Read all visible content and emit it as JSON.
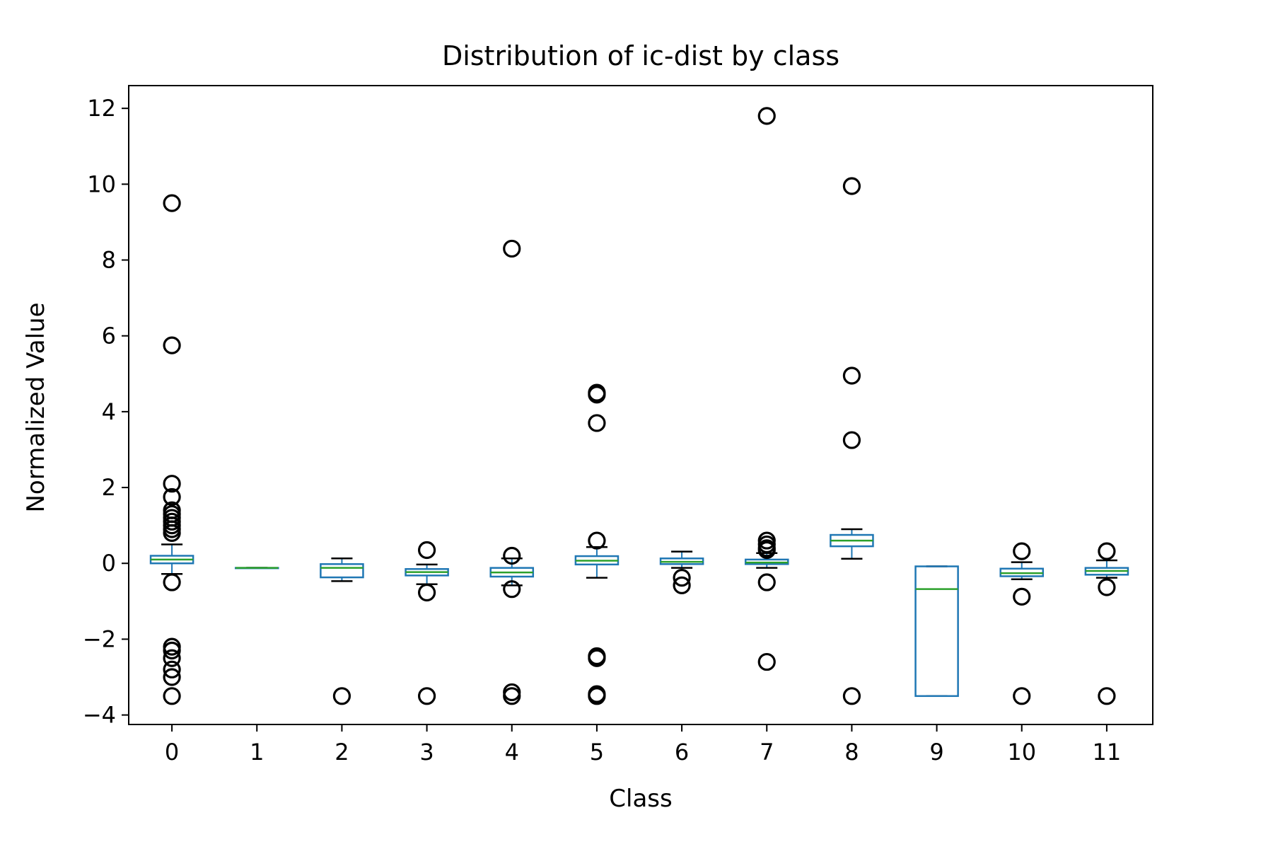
{
  "chart_data": {
    "type": "box",
    "title": "Distribution of ic-dist by class",
    "xlabel": "Class",
    "ylabel": "Normalized Value",
    "categories": [
      "0",
      "1",
      "2",
      "3",
      "4",
      "5",
      "6",
      "7",
      "8",
      "9",
      "10",
      "11"
    ],
    "ylim": [
      -4.25,
      12.6
    ],
    "yticks": [
      -4,
      -2,
      0,
      2,
      4,
      6,
      8,
      10,
      12
    ],
    "ytick_labels": [
      "−4",
      "−2",
      "0",
      "2",
      "4",
      "6",
      "8",
      "10",
      "12"
    ],
    "grid": false,
    "legend": "none",
    "colors": {
      "box": "#1f77b4",
      "median": "#2ca02c",
      "whisker_cap": "#000000",
      "flier": "#000000"
    },
    "boxes": [
      {
        "category": "0",
        "whislo": -0.28,
        "q1": 0.0,
        "med": 0.1,
        "q3": 0.2,
        "whishi": 0.5,
        "fliers": [
          9.5,
          5.75,
          2.1,
          1.75,
          1.4,
          1.3,
          1.2,
          1.1,
          1.0,
          0.9,
          0.8,
          -0.5,
          -2.2,
          -2.3,
          -2.5,
          -2.8,
          -3.0,
          -3.5
        ]
      },
      {
        "category": "1",
        "whislo": -0.12,
        "q1": -0.12,
        "med": -0.12,
        "q3": -0.12,
        "whishi": -0.12,
        "fliers": []
      },
      {
        "category": "2",
        "whislo": -0.47,
        "q1": -0.37,
        "med": -0.12,
        "q3": -0.02,
        "whishi": 0.13,
        "fliers": [
          -3.5
        ]
      },
      {
        "category": "3",
        "whislo": -0.55,
        "q1": -0.32,
        "med": -0.23,
        "q3": -0.15,
        "whishi": -0.03,
        "fliers": [
          0.35,
          -0.77,
          -3.5
        ]
      },
      {
        "category": "4",
        "whislo": -0.58,
        "q1": -0.35,
        "med": -0.24,
        "q3": -0.12,
        "whishi": 0.13,
        "fliers": [
          8.3,
          0.2,
          -0.68,
          -3.4,
          -3.5
        ]
      },
      {
        "category": "5",
        "whislo": -0.38,
        "q1": -0.03,
        "med": 0.07,
        "q3": 0.19,
        "whishi": 0.43,
        "fliers": [
          4.5,
          4.45,
          3.7,
          0.6,
          -2.45,
          -2.5,
          -3.45,
          -3.5
        ]
      },
      {
        "category": "6",
        "whislo": -0.12,
        "q1": -0.02,
        "med": 0.04,
        "q3": 0.13,
        "whishi": 0.31,
        "fliers": [
          -0.38,
          -0.58
        ]
      },
      {
        "category": "7",
        "whislo": -0.12,
        "q1": -0.02,
        "med": 0.02,
        "q3": 0.1,
        "whishi": 0.27,
        "fliers": [
          11.8,
          0.6,
          0.5,
          0.4,
          0.35,
          -0.5,
          -2.6
        ]
      },
      {
        "category": "8",
        "whislo": 0.12,
        "q1": 0.45,
        "med": 0.6,
        "q3": 0.75,
        "whishi": 0.9,
        "fliers": [
          9.95,
          4.95,
          3.25,
          -3.5
        ]
      },
      {
        "category": "9",
        "whislo": -3.5,
        "q1": -3.5,
        "med": -0.68,
        "q3": -0.08,
        "whishi": -0.08,
        "fliers": []
      },
      {
        "category": "10",
        "whislo": -0.42,
        "q1": -0.34,
        "med": -0.26,
        "q3": -0.14,
        "whishi": 0.03,
        "fliers": [
          0.32,
          -0.88,
          -3.5
        ]
      },
      {
        "category": "11",
        "whislo": -0.38,
        "q1": -0.3,
        "med": -0.2,
        "q3": -0.12,
        "whishi": 0.08,
        "fliers": [
          0.32,
          -0.63,
          -3.5
        ]
      }
    ]
  }
}
